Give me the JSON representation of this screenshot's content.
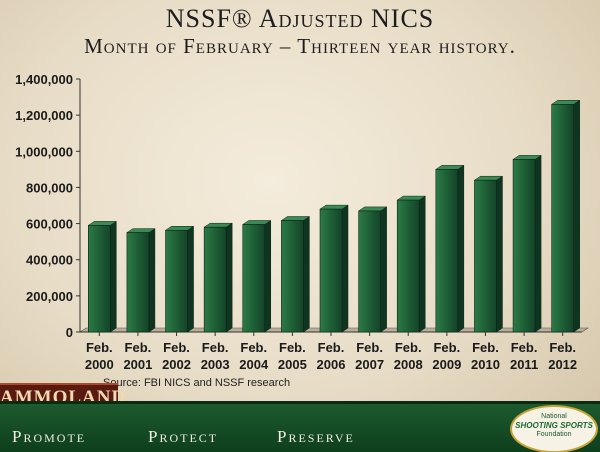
{
  "header": {
    "title": "NSSF® Adjusted NICS",
    "subtitle": "Month of February – Thirteen year history."
  },
  "chart_data": {
    "type": "bar",
    "title": "NSSF® Adjusted NICS",
    "subtitle": "Month of February – Thirteen year history.",
    "xlabel": "",
    "ylabel": "",
    "ylim": [
      0,
      1400000
    ],
    "yticks": [
      "0",
      "200,000",
      "400,000",
      "600,000",
      "800,000",
      "1,000,000",
      "1,200,000",
      "1,400,000"
    ],
    "categories": [
      [
        "Feb.",
        "2000"
      ],
      [
        "Feb.",
        "2001"
      ],
      [
        "Feb.",
        "2002"
      ],
      [
        "Feb.",
        "2003"
      ],
      [
        "Feb.",
        "2004"
      ],
      [
        "Feb.",
        "2005"
      ],
      [
        "Feb.",
        "2006"
      ],
      [
        "Feb.",
        "2007"
      ],
      [
        "Feb.",
        "2008"
      ],
      [
        "Feb.",
        "2009"
      ],
      [
        "Feb.",
        "2010"
      ],
      [
        "Feb.",
        "2011"
      ],
      [
        "Feb.",
        "2012"
      ]
    ],
    "values": [
      590000,
      550000,
      563000,
      580000,
      595000,
      617000,
      680000,
      670000,
      730000,
      900000,
      840000,
      955000,
      1260000
    ],
    "bar_color": "#1e5a33",
    "grid": false,
    "legend": "none"
  },
  "source": "Source: FBI NICS and NSSF research",
  "brand": {
    "ammoland": "AMMOLAND"
  },
  "footer": {
    "mottos": [
      "Promote",
      "Protect",
      "Preserve"
    ],
    "logo": {
      "line1": "National",
      "line2": "SHOOTING SPORTS",
      "line3": "Foundation"
    }
  }
}
